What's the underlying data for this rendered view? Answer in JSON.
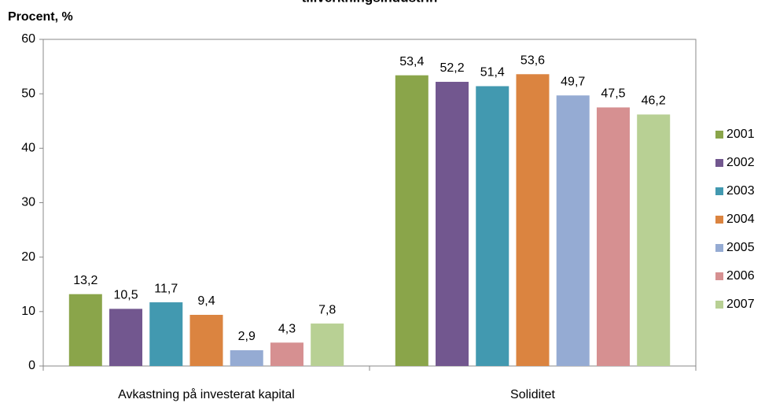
{
  "chart_data": {
    "type": "bar",
    "title": "tillverkningsindustrin",
    "y_label": "Procent, %",
    "categories": [
      "Avkastning på investerat kapital",
      "Soliditet"
    ],
    "series": [
      {
        "name": "2001",
        "color": "#8aa54a",
        "values": [
          13.2,
          53.4
        ],
        "value_labels": [
          "13,2",
          "53,4"
        ]
      },
      {
        "name": "2002",
        "color": "#72578f",
        "values": [
          10.5,
          52.2
        ],
        "value_labels": [
          "10,5",
          "52,2"
        ]
      },
      {
        "name": "2003",
        "color": "#4299b0",
        "values": [
          11.7,
          51.4
        ],
        "value_labels": [
          "11,7",
          "51,4"
        ]
      },
      {
        "name": "2004",
        "color": "#db8440",
        "values": [
          9.4,
          53.6
        ],
        "value_labels": [
          "9,4",
          "53,6"
        ]
      },
      {
        "name": "2005",
        "color": "#95abd3",
        "values": [
          2.9,
          49.7
        ],
        "value_labels": [
          "2,9",
          "49,7"
        ]
      },
      {
        "name": "2006",
        "color": "#d69091",
        "values": [
          4.3,
          47.5
        ],
        "value_labels": [
          "4,3",
          "47,5"
        ]
      },
      {
        "name": "2007",
        "color": "#b8d094",
        "values": [
          7.8,
          46.2
        ],
        "value_labels": [
          "7,8",
          "46,2"
        ]
      }
    ],
    "ylim": [
      0,
      60
    ],
    "yticks": [
      0,
      10,
      20,
      30,
      40,
      50,
      60
    ],
    "legend": "right"
  }
}
